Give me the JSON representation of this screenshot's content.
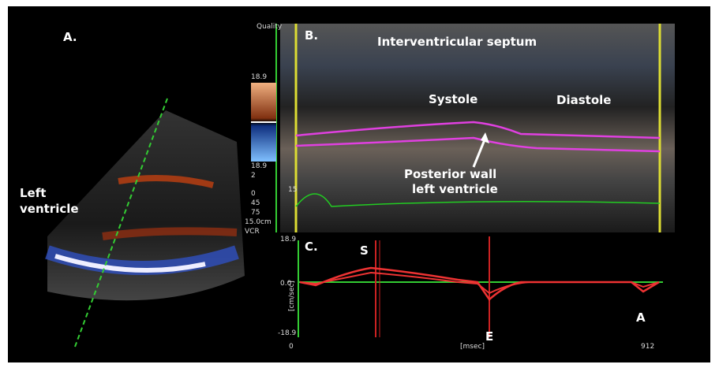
{
  "panel_a": {
    "label": "A.",
    "annotation": [
      "Left",
      "ventricle"
    ]
  },
  "panel_b": {
    "label": "B.",
    "title": "Interventricular septum",
    "systole": "Systole",
    "diastole": "Diastole",
    "annotation": [
      "Posterior wall",
      "left ventricle"
    ],
    "quality": "Quality",
    "scale_labels": [
      "18.9",
      "18.9",
      "2",
      "0",
      "45",
      "75",
      "15.0cm",
      "VCR"
    ],
    "depth_label": "15"
  },
  "panel_c": {
    "label": "C.",
    "peaks": {
      "s": "S",
      "e": "E",
      "a": "A"
    },
    "y_labels": [
      "18.9",
      "0.0",
      "-18.9"
    ],
    "y_unit": "[cm/sec]",
    "x_labels": [
      "0",
      "912"
    ],
    "x_unit": "[msec]"
  }
}
